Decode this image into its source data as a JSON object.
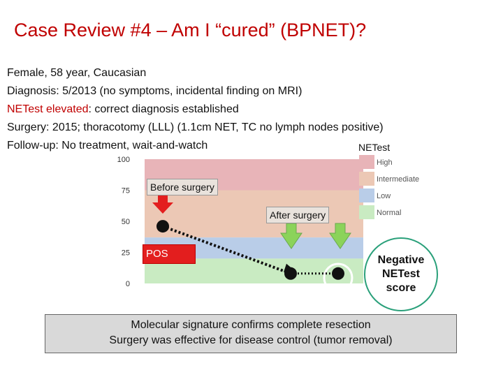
{
  "slide": {
    "title": "Case Review #4 – Am I “cured” (BPNET)?"
  },
  "patient_info": [
    {
      "label": "",
      "text": "Female, 58 year, Caucasian"
    },
    {
      "label": "Diagnosis:",
      "text": " 5/2013 (no symptoms, incidental finding on MRI)"
    },
    {
      "label": "NETest elevated",
      "text": ": correct diagnosis established"
    },
    {
      "label": "Surgery:",
      "text": "  2015; thoracotomy (LLL) (1.1cm NET, TC no lymph nodes positive)"
    },
    {
      "label": "Follow-up:",
      "text": " No treatment, wait-and-watch"
    }
  ],
  "chart_data": {
    "type": "line",
    "title": "NETest",
    "ylim": [
      0,
      100
    ],
    "y_ticks": [
      "100",
      "75",
      "50",
      "25",
      "0"
    ],
    "bands": [
      {
        "name": "High",
        "from": 75,
        "to": 100,
        "color": "#e8b4b8"
      },
      {
        "name": "Intermediate",
        "from": 37,
        "to": 75,
        "color": "#ecc8b5"
      },
      {
        "name": "Low",
        "from": 20,
        "to": 37,
        "color": "#b9cde8"
      },
      {
        "name": "Normal",
        "from": 0,
        "to": 20,
        "color": "#c9ebc2"
      }
    ],
    "points": [
      {
        "label": "Before surgery",
        "y": 46
      },
      {
        "label": "After surgery",
        "y": 8
      },
      {
        "label": "After surgery",
        "y": 8
      }
    ],
    "annotations": {
      "before": "Before surgery",
      "after": "After surgery",
      "pos": "POS"
    }
  },
  "negative_bubble": "Negative NETest score",
  "summary": {
    "line1": "Molecular signature confirms complete resection",
    "line2": "Surgery was effective for disease control (tumor removal)"
  },
  "colors": {
    "title": "#c00000",
    "arrow_red": "#e31e1e",
    "arrow_green": "#8bd35a",
    "bubble_border": "#2aa07a"
  }
}
